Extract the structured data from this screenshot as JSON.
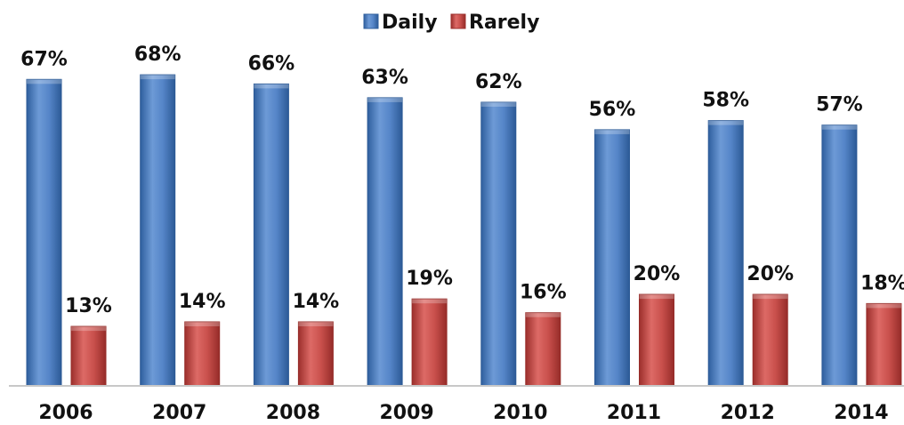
{
  "chart_data": {
    "type": "bar",
    "title": "",
    "xlabel": "",
    "ylabel": "",
    "ylim": [
      0,
      72
    ],
    "grid": false,
    "legend_position": "top",
    "categories": [
      "2006",
      "2007",
      "2008",
      "2009",
      "2010",
      "2011",
      "2012",
      "2014"
    ],
    "series": [
      {
        "name": "Daily",
        "color": "#4f81bd",
        "values": [
          67,
          68,
          66,
          63,
          62,
          56,
          58,
          57
        ],
        "labels": [
          "67%",
          "68%",
          "66%",
          "63%",
          "62%",
          "56%",
          "58%",
          "57%"
        ]
      },
      {
        "name": "Rarely",
        "color": "#c0504d",
        "values": [
          13,
          14,
          14,
          19,
          16,
          20,
          20,
          18
        ],
        "labels": [
          "13%",
          "14%",
          "14%",
          "19%",
          "16%",
          "20%",
          "20%",
          "18%"
        ]
      }
    ]
  }
}
